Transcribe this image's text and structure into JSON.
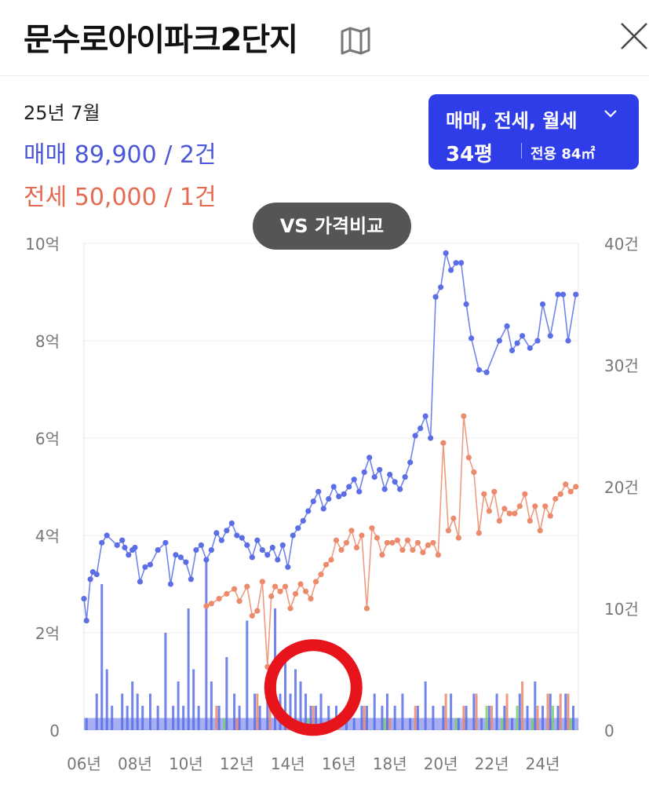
{
  "header": {
    "title": "문수로아이파크2단지",
    "map_icon": "map-icon",
    "close_icon": "close-icon"
  },
  "summary": {
    "date": "25년 7월",
    "sale": "매매 89,900 / 2건",
    "jeonse": "전세 50,000 / 1건"
  },
  "filter": {
    "types": "매매, 전세, 월세",
    "size": "34평",
    "area": "전용 84㎡"
  },
  "vs_button": "VS 가격비교",
  "colors": {
    "sale": "#5b6ee6",
    "jeonse": "#ec8a6c",
    "wolse": "#7dcf6a",
    "filter_bg": "#2f3de8",
    "annotation": "#e8141c"
  },
  "chart_data": {
    "type": "line",
    "x_labels": [
      "06년",
      "08년",
      "10년",
      "12년",
      "14년",
      "16년",
      "18년",
      "20년",
      "22년",
      "24년"
    ],
    "y_left": {
      "labels": [
        "0",
        "2억",
        "4억",
        "6억",
        "8억",
        "10억"
      ],
      "range": [
        0,
        10
      ]
    },
    "y_right": {
      "labels": [
        "0",
        "10건",
        "20건",
        "30건",
        "40건"
      ],
      "range": [
        0,
        40
      ]
    },
    "series": [
      {
        "key": "sale",
        "x": [
          2006.0,
          2006.1,
          2006.25,
          2006.35,
          2006.5,
          2006.7,
          2006.9,
          2007.3,
          2007.5,
          2007.6,
          2007.75,
          2007.9,
          2008.0,
          2008.2,
          2008.4,
          2008.6,
          2008.9,
          2009.2,
          2009.4,
          2009.6,
          2009.8,
          2010.0,
          2010.2,
          2010.4,
          2010.6,
          2010.8,
          2011.0,
          2011.2,
          2011.4,
          2011.6,
          2011.8,
          2012.0,
          2012.2,
          2012.4,
          2012.6,
          2012.8,
          2013.0,
          2013.2,
          2013.4,
          2013.6,
          2013.8,
          2014.0,
          2014.2,
          2014.4,
          2014.6,
          2014.8,
          2015.0,
          2015.2,
          2015.4,
          2015.6,
          2015.8,
          2016.0,
          2016.2,
          2016.4,
          2016.6,
          2016.8,
          2017.0,
          2017.2,
          2017.4,
          2017.6,
          2017.8,
          2018.0,
          2018.2,
          2018.4,
          2018.6,
          2018.8,
          2019.0,
          2019.2,
          2019.4,
          2019.6,
          2019.8,
          2020.0,
          2020.2,
          2020.4,
          2020.6,
          2020.8,
          2021.0,
          2021.2,
          2021.5,
          2021.8,
          2022.3,
          2022.6,
          2022.8,
          2023.0,
          2023.2,
          2023.5,
          2023.8,
          2024.0,
          2024.3,
          2024.6,
          2024.8,
          2025.0,
          2025.3
        ],
        "y": [
          2.7,
          2.25,
          3.1,
          3.25,
          3.2,
          3.85,
          4.0,
          3.8,
          3.9,
          3.75,
          3.6,
          3.7,
          3.75,
          3.05,
          3.35,
          3.4,
          3.7,
          3.85,
          3.0,
          3.6,
          3.55,
          3.45,
          3.1,
          3.7,
          3.8,
          3.5,
          3.7,
          4.05,
          3.9,
          4.1,
          4.25,
          4.0,
          3.95,
          3.8,
          3.55,
          3.9,
          3.7,
          3.6,
          3.75,
          3.5,
          3.8,
          3.35,
          4.0,
          4.15,
          4.3,
          4.5,
          4.7,
          4.9,
          4.55,
          4.75,
          5.0,
          4.8,
          4.85,
          5.0,
          5.15,
          4.9,
          5.3,
          5.6,
          5.2,
          5.35,
          4.95,
          5.25,
          5.1,
          4.95,
          5.2,
          5.5,
          6.05,
          6.2,
          6.45,
          6.0,
          8.9,
          9.1,
          9.8,
          9.45,
          9.6,
          9.6,
          8.75,
          8.05,
          7.4,
          7.35,
          8.0,
          8.3,
          7.8,
          7.95,
          8.1,
          7.85,
          8.0,
          8.75,
          8.1,
          8.95,
          8.95,
          8.0,
          8.95
        ]
      },
      {
        "key": "jeonse",
        "x": [
          2010.8,
          2011.0,
          2011.3,
          2011.6,
          2011.9,
          2012.1,
          2012.4,
          2012.6,
          2012.8,
          2013.0,
          2013.2,
          2013.35,
          2013.5,
          2013.7,
          2013.9,
          2014.1,
          2014.3,
          2014.5,
          2014.7,
          2014.9,
          2015.1,
          2015.3,
          2015.5,
          2015.7,
          2015.9,
          2016.1,
          2016.3,
          2016.5,
          2016.7,
          2016.9,
          2017.1,
          2017.3,
          2017.5,
          2017.7,
          2017.9,
          2018.1,
          2018.3,
          2018.5,
          2018.7,
          2018.9,
          2019.1,
          2019.3,
          2019.5,
          2019.7,
          2019.9,
          2020.1,
          2020.3,
          2020.5,
          2020.7,
          2020.9,
          2021.1,
          2021.3,
          2021.5,
          2021.7,
          2021.9,
          2022.1,
          2022.3,
          2022.5,
          2022.7,
          2022.9,
          2023.1,
          2023.3,
          2023.5,
          2023.7,
          2023.9,
          2024.1,
          2024.3,
          2024.5,
          2024.7,
          2024.9,
          2025.1,
          2025.3
        ],
        "y": [
          2.55,
          2.6,
          2.7,
          2.8,
          2.9,
          2.65,
          2.95,
          2.35,
          2.45,
          3.05,
          1.3,
          2.75,
          2.95,
          2.85,
          2.95,
          2.5,
          2.8,
          3.0,
          2.85,
          2.7,
          3.05,
          3.2,
          3.4,
          3.5,
          3.9,
          3.7,
          3.85,
          4.1,
          3.75,
          4.0,
          2.5,
          4.15,
          3.95,
          3.6,
          3.85,
          3.85,
          3.9,
          3.7,
          3.9,
          3.7,
          3.85,
          3.65,
          3.8,
          3.85,
          3.6,
          5.9,
          4.1,
          4.35,
          3.95,
          6.45,
          5.6,
          5.3,
          4.05,
          4.85,
          4.5,
          4.9,
          4.3,
          4.55,
          4.45,
          4.45,
          4.6,
          4.85,
          4.3,
          4.6,
          4.1,
          4.6,
          4.4,
          4.75,
          4.85,
          5.05,
          4.9,
          5.0
        ]
      }
    ],
    "volume_bars": {
      "sale": [
        [
          2006.1,
          1
        ],
        [
          2006.5,
          3
        ],
        [
          2006.7,
          12
        ],
        [
          2006.9,
          5
        ],
        [
          2007.1,
          2
        ],
        [
          2007.5,
          3
        ],
        [
          2007.7,
          2
        ],
        [
          2007.9,
          4
        ],
        [
          2008.1,
          3
        ],
        [
          2008.3,
          2
        ],
        [
          2008.6,
          3
        ],
        [
          2008.9,
          2
        ],
        [
          2009.2,
          8
        ],
        [
          2009.5,
          2
        ],
        [
          2009.7,
          4
        ],
        [
          2009.9,
          2
        ],
        [
          2010.1,
          10
        ],
        [
          2010.3,
          5
        ],
        [
          2010.5,
          2
        ],
        [
          2010.8,
          14
        ],
        [
          2011.0,
          4
        ],
        [
          2011.3,
          2
        ],
        [
          2011.6,
          6
        ],
        [
          2011.9,
          3
        ],
        [
          2012.1,
          2
        ],
        [
          2012.4,
          9
        ],
        [
          2012.7,
          3
        ],
        [
          2012.9,
          2
        ],
        [
          2013.2,
          4
        ],
        [
          2013.5,
          10
        ],
        [
          2013.7,
          3
        ],
        [
          2013.9,
          6
        ],
        [
          2014.1,
          3
        ],
        [
          2014.3,
          5
        ],
        [
          2014.5,
          4
        ],
        [
          2014.7,
          3
        ],
        [
          2014.9,
          2
        ],
        [
          2015.1,
          2
        ],
        [
          2015.3,
          3
        ],
        [
          2015.6,
          2
        ],
        [
          2015.9,
          2
        ],
        [
          2016.3,
          2
        ],
        [
          2016.6,
          1
        ],
        [
          2016.9,
          2
        ],
        [
          2017.1,
          2
        ],
        [
          2017.4,
          3
        ],
        [
          2017.7,
          2
        ],
        [
          2017.9,
          3
        ],
        [
          2018.2,
          2
        ],
        [
          2018.5,
          3
        ],
        [
          2018.8,
          1
        ],
        [
          2019.1,
          2
        ],
        [
          2019.4,
          4
        ],
        [
          2019.7,
          2
        ],
        [
          2020.1,
          2
        ],
        [
          2020.4,
          3
        ],
        [
          2020.7,
          1
        ],
        [
          2021.0,
          2
        ],
        [
          2021.3,
          3
        ],
        [
          2021.6,
          1
        ],
        [
          2021.9,
          2
        ],
        [
          2022.2,
          3
        ],
        [
          2022.5,
          2
        ],
        [
          2022.8,
          1
        ],
        [
          2023.1,
          3
        ],
        [
          2023.4,
          2
        ],
        [
          2023.7,
          4
        ],
        [
          2024.0,
          2
        ],
        [
          2024.3,
          3
        ],
        [
          2024.6,
          2
        ],
        [
          2024.9,
          3
        ],
        [
          2025.2,
          2
        ]
      ],
      "jeonse": [
        [
          2011.2,
          2
        ],
        [
          2012.0,
          1
        ],
        [
          2012.8,
          3
        ],
        [
          2013.3,
          2
        ],
        [
          2014.0,
          1
        ],
        [
          2015.0,
          2
        ],
        [
          2016.0,
          1
        ],
        [
          2017.0,
          2
        ],
        [
          2018.0,
          1
        ],
        [
          2019.0,
          2
        ],
        [
          2020.2,
          3
        ],
        [
          2020.9,
          2
        ],
        [
          2021.4,
          3
        ],
        [
          2022.0,
          2
        ],
        [
          2022.6,
          3
        ],
        [
          2023.2,
          4
        ],
        [
          2023.8,
          2
        ],
        [
          2024.2,
          3
        ],
        [
          2024.7,
          3
        ],
        [
          2025.0,
          3
        ]
      ],
      "wolse": [
        [
          2011.5,
          1
        ],
        [
          2014.8,
          1
        ],
        [
          2017.8,
          1
        ],
        [
          2020.6,
          1
        ],
        [
          2021.8,
          2
        ],
        [
          2022.4,
          1
        ],
        [
          2023.0,
          2
        ],
        [
          2023.6,
          1
        ],
        [
          2024.4,
          2
        ],
        [
          2025.1,
          1
        ]
      ]
    },
    "volume_base": [
      [
        2006.0,
        2010.8,
        1
      ],
      [
        2010.8,
        2025.4,
        1
      ]
    ],
    "annotation": {
      "type": "circle",
      "center_x": 2015.0,
      "center_y_volume": 3.5
    },
    "grid": true,
    "legend": "none"
  }
}
